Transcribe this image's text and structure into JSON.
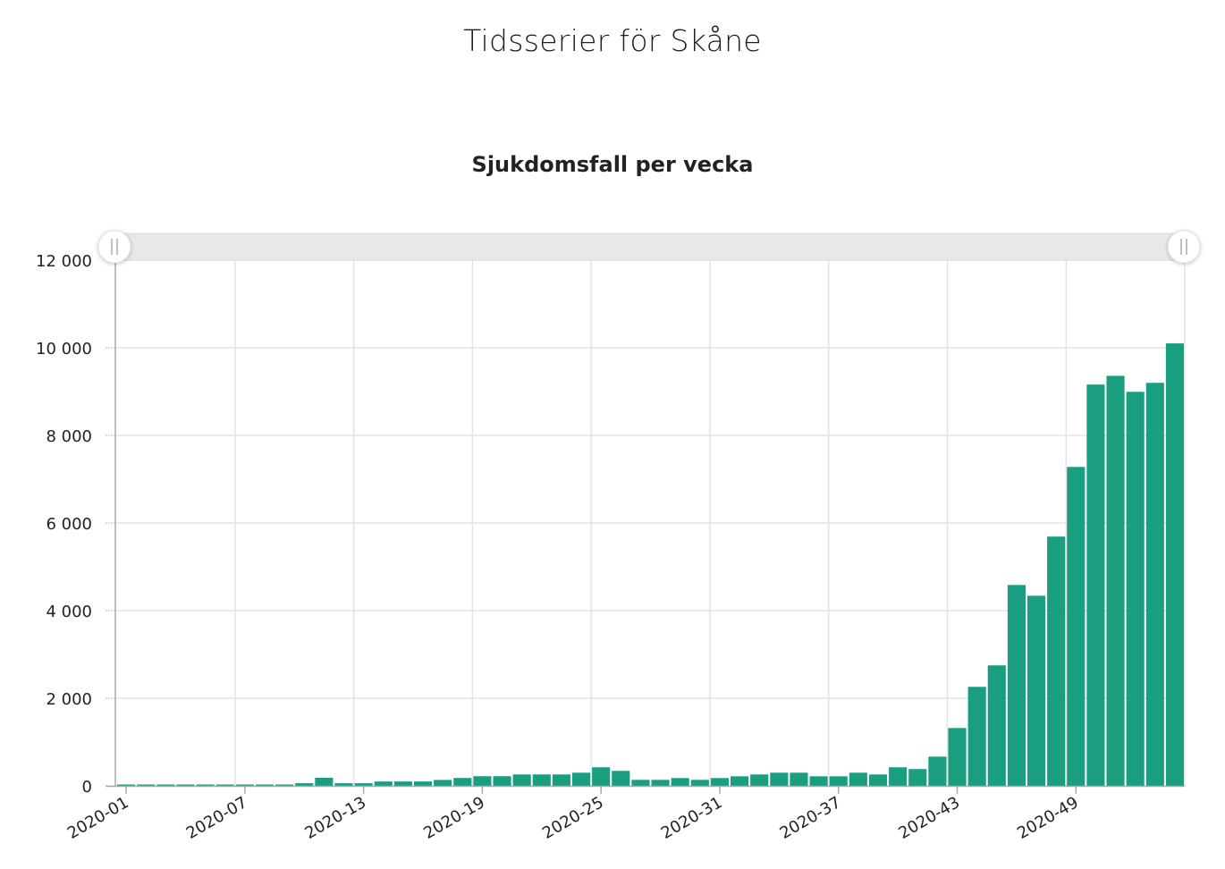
{
  "page": {
    "title": "Tidsserier för Skåne"
  },
  "chart_data": {
    "type": "bar",
    "title": "Sjukdomsfall per vecka",
    "xlabel": "",
    "ylabel": "",
    "ylim": [
      0,
      12000
    ],
    "yticks": [
      0,
      2000,
      4000,
      6000,
      8000,
      10000,
      12000
    ],
    "ytick_labels": [
      "0",
      "2 000",
      "4 000",
      "6 000",
      "8 000",
      "10 000",
      "12 000"
    ],
    "xtick_labels": [
      "2020-01",
      "2020-07",
      "2020-13",
      "2020-19",
      "2020-25",
      "2020-31",
      "2020-37",
      "2020-43",
      "2020-49"
    ],
    "grid": true,
    "bar_color": "#1a9e80",
    "categories": [
      "2020-01",
      "2020-02",
      "2020-03",
      "2020-04",
      "2020-05",
      "2020-06",
      "2020-07",
      "2020-08",
      "2020-09",
      "2020-10",
      "2020-11",
      "2020-12",
      "2020-13",
      "2020-14",
      "2020-15",
      "2020-16",
      "2020-17",
      "2020-18",
      "2020-19",
      "2020-20",
      "2020-21",
      "2020-22",
      "2020-23",
      "2020-24",
      "2020-25",
      "2020-26",
      "2020-27",
      "2020-28",
      "2020-29",
      "2020-30",
      "2020-31",
      "2020-32",
      "2020-33",
      "2020-34",
      "2020-35",
      "2020-36",
      "2020-37",
      "2020-38",
      "2020-39",
      "2020-40",
      "2020-41",
      "2020-42",
      "2020-43",
      "2020-44",
      "2020-45",
      "2020-46",
      "2020-47",
      "2020-48",
      "2020-49",
      "2020-50",
      "2020-51",
      "2020-52",
      "2020-53",
      "2021-01"
    ],
    "values": [
      10,
      10,
      10,
      10,
      10,
      10,
      10,
      10,
      15,
      60,
      185,
      60,
      60,
      100,
      100,
      100,
      135,
      180,
      220,
      220,
      260,
      260,
      260,
      300,
      424,
      342,
      137,
      137,
      178,
      137,
      178,
      218,
      260,
      300,
      300,
      218,
      218,
      300,
      260,
      424,
      383,
      667,
      1320,
      2260,
      2750,
      4585,
      4340,
      5690,
      7280,
      9160,
      9360,
      8995,
      9200,
      10100
    ]
  },
  "range_slider": {
    "left_handle_icon": "grip-icon",
    "right_handle_icon": "grip-icon"
  }
}
